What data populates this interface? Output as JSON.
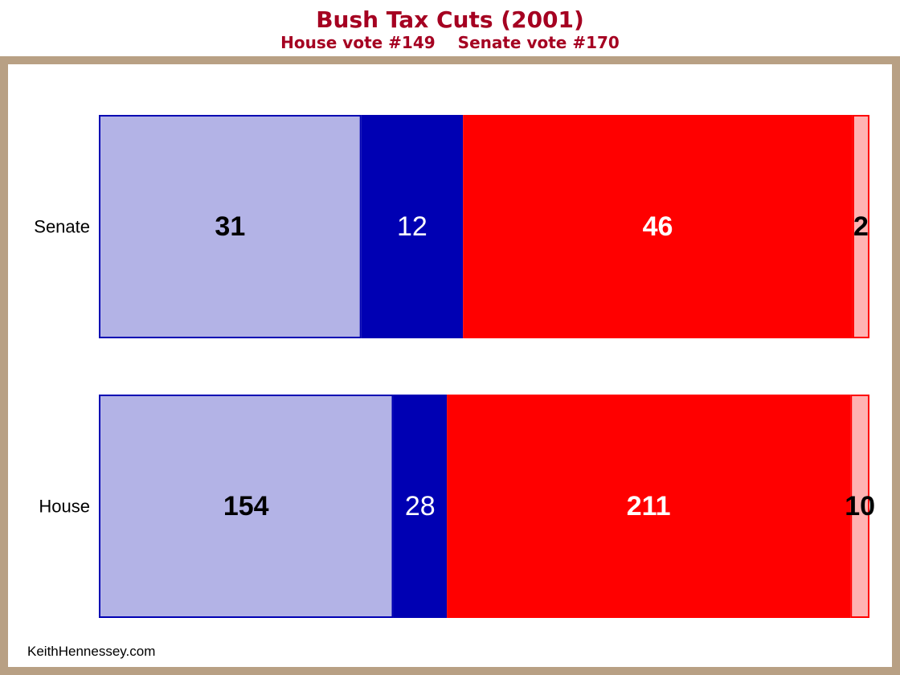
{
  "title": "Bush Tax Cuts (2001)",
  "subtitle": {
    "house_vote": "House vote #149",
    "senate_vote": "Senate vote #170"
  },
  "footer": "KeithHennessey.com",
  "colors": {
    "title": "#a50021",
    "frame": "#b8a084",
    "dem_light": "#b3b3e6",
    "dem_dark": "#0000b3",
    "rep_red": "#ff0000",
    "rep_light": "#ffb3b3"
  },
  "chart_data": {
    "type": "bar",
    "orientation": "horizontal",
    "stacked": "full-width",
    "categories": [
      "Senate",
      "House"
    ],
    "series": [
      {
        "values": [
          31,
          154
        ],
        "color": "#b3b3e6",
        "border": "#0000b3",
        "label_color": "#000000",
        "label_bold": true
      },
      {
        "values": [
          12,
          28
        ],
        "color": "#0000b3",
        "border": "#0000b3",
        "label_color": "#ffffff",
        "label_bold": false
      },
      {
        "values": [
          46,
          211
        ],
        "color": "#ff0000",
        "border": "#ff0000",
        "label_color": "#ffffff",
        "label_bold": true
      },
      {
        "values": [
          2,
          10
        ],
        "color": "#ffb3b3",
        "border": "#ff0000",
        "label_color": "#000000",
        "label_bold": true
      }
    ],
    "grid": false,
    "legend": "none"
  }
}
